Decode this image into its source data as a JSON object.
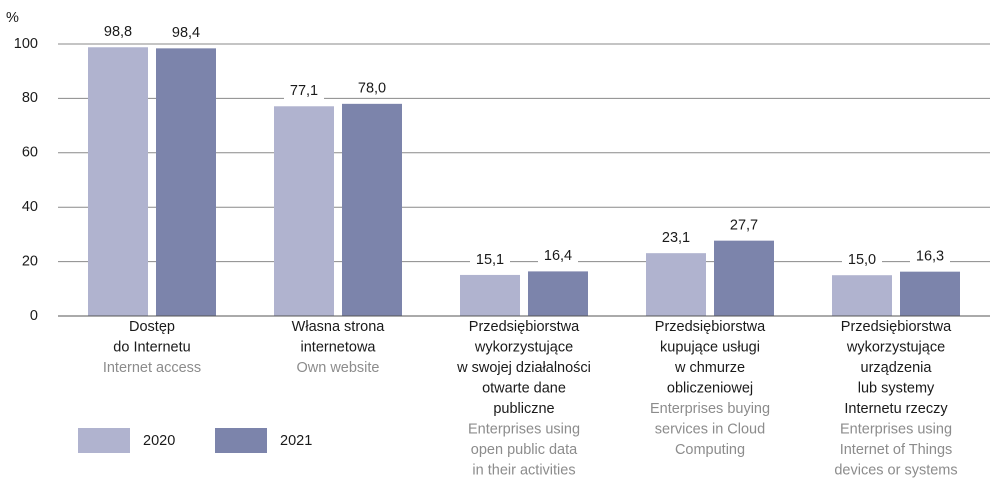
{
  "chart_data": {
    "type": "bar",
    "y_label": "%",
    "categories": [
      {
        "pl": [
          "Dostęp",
          "do Internetu"
        ],
        "en": [
          "Internet access"
        ]
      },
      {
        "pl": [
          "Własna strona",
          "internetowa"
        ],
        "en": [
          "Own website"
        ]
      },
      {
        "pl": [
          "Przedsiębiorstwa",
          "wykorzystujące",
          "w swojej działalności",
          "otwarte dane",
          "publiczne"
        ],
        "en": [
          "Enterprises using",
          "open public data",
          "in their activities"
        ]
      },
      {
        "pl": [
          "Przedsiębiorstwa",
          "kupujące usługi",
          "w chmurze",
          "obliczeniowej"
        ],
        "en": [
          "Enterprises buying",
          "services in Cloud",
          "Computing"
        ]
      },
      {
        "pl": [
          "Przedsiębiorstwa",
          "wykorzystujące",
          "urządzenia",
          "lub systemy",
          "Internetu rzeczy"
        ],
        "en": [
          "Enterprises using",
          "Internet of Things",
          "devices or systems"
        ]
      }
    ],
    "series": [
      {
        "name": "2020",
        "color": "#b0b3cf",
        "values": [
          98.8,
          77.1,
          15.1,
          23.1,
          15.0
        ],
        "value_labels": [
          "98,8",
          "77,1",
          "15,1",
          "23,1",
          "15,0"
        ]
      },
      {
        "name": "2021",
        "color": "#7c84ab",
        "values": [
          98.4,
          78.0,
          16.4,
          27.7,
          16.3
        ],
        "value_labels": [
          "98,4",
          "78,0",
          "16,4",
          "27,7",
          "16,3"
        ]
      }
    ],
    "ylim": [
      0,
      100
    ],
    "yticks": [
      0,
      20,
      40,
      60,
      80,
      100
    ],
    "grid": true
  }
}
